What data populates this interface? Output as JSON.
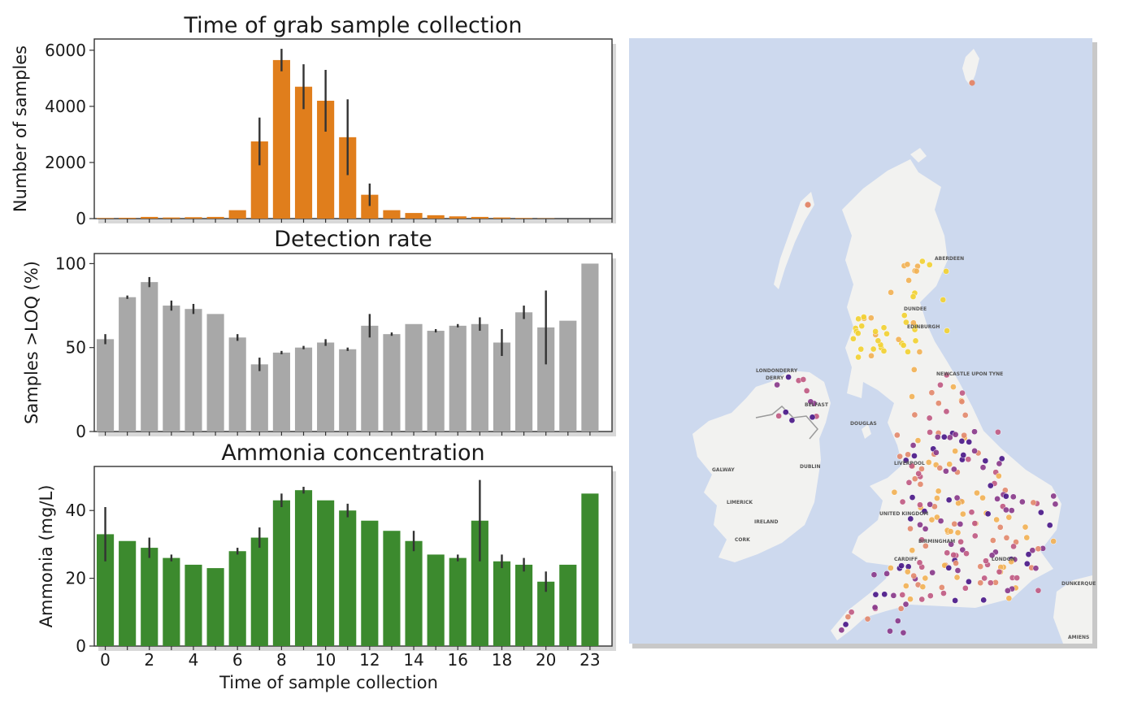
{
  "chart_data": [
    {
      "type": "bar",
      "title": "Time of grab sample collection",
      "xlabel": "",
      "ylabel": "Number of samples",
      "x": [
        0,
        1,
        2,
        3,
        4,
        5,
        6,
        7,
        8,
        9,
        10,
        11,
        12,
        13,
        14,
        15,
        16,
        17,
        18,
        19,
        20,
        21,
        22,
        23
      ],
      "values": [
        20,
        30,
        60,
        40,
        50,
        60,
        300,
        2750,
        5650,
        4700,
        4200,
        2900,
        850,
        300,
        200,
        120,
        80,
        60,
        40,
        20,
        10,
        0,
        0,
        0
      ],
      "error": [
        0,
        0,
        0,
        0,
        0,
        0,
        0,
        850,
        400,
        800,
        1100,
        1350,
        400,
        0,
        0,
        0,
        0,
        0,
        0,
        0,
        0,
        0,
        0,
        0
      ],
      "ylim": [
        0,
        6400
      ],
      "yticks": [
        0,
        2000,
        4000,
        6000
      ],
      "color": "#e07e1c",
      "grid": false
    },
    {
      "type": "bar",
      "title": "Detection rate",
      "xlabel": "",
      "ylabel": "Samples >LOQ (%)",
      "x": [
        0,
        1,
        2,
        3,
        4,
        5,
        6,
        7,
        8,
        9,
        10,
        11,
        12,
        13,
        14,
        15,
        16,
        17,
        18,
        19,
        20,
        21,
        23
      ],
      "values": [
        55,
        80,
        89,
        75,
        73,
        70,
        56,
        40,
        47,
        50,
        53,
        49,
        63,
        58,
        64,
        60,
        63,
        64,
        53,
        71,
        62,
        66,
        100
      ],
      "error": [
        3,
        1,
        3,
        3,
        3,
        0,
        2,
        4,
        1,
        1,
        2,
        1,
        7,
        1,
        0,
        1,
        1,
        4,
        8,
        4,
        22,
        0,
        0
      ],
      "ylim": [
        0,
        106
      ],
      "yticks": [
        0,
        50,
        100
      ],
      "color": "#a8a8a8",
      "grid": false
    },
    {
      "type": "bar",
      "title": "Ammonia concentration",
      "xlabel": "Time of sample collection",
      "ylabel": "Ammonia (mg/L)",
      "x": [
        0,
        1,
        2,
        3,
        4,
        5,
        6,
        7,
        8,
        9,
        10,
        11,
        12,
        13,
        14,
        15,
        16,
        17,
        18,
        19,
        20,
        21,
        23
      ],
      "values": [
        33,
        31,
        29,
        26,
        24,
        23,
        28,
        32,
        43,
        46,
        43,
        40,
        37,
        34,
        31,
        27,
        26,
        37,
        25,
        24,
        19,
        24,
        45
      ],
      "error": [
        8,
        0,
        3,
        1,
        0,
        0,
        1,
        3,
        2,
        1,
        0,
        2,
        0,
        0,
        3,
        0,
        1,
        12,
        2,
        2,
        3,
        0,
        0
      ],
      "ylim": [
        0,
        53
      ],
      "yticks": [
        0,
        20,
        40
      ],
      "xticks": [
        0,
        2,
        4,
        6,
        8,
        10,
        12,
        14,
        16,
        18,
        20,
        23
      ],
      "color": "#3c8a2e",
      "grid": false
    }
  ],
  "map": {
    "type": "map",
    "labels": [
      "ABERDEEN",
      "DUNDEE",
      "EDINBURGH",
      "LONDONDERRY",
      "DERRY",
      "BELFAST",
      "DOUGLAS",
      "NEWCASTLE UPON TYNE",
      "DUBLIN",
      "GALWAY",
      "LIMERICK",
      "IRELAND",
      "CORK",
      "UNITED KINGDOM",
      "LIVERPOOL",
      "BIRMINGHAM",
      "CARDIFF",
      "LONDON",
      "DUNKERQUE",
      "AMIENS"
    ],
    "colors": {
      "sea": "#cdd9ee",
      "land": "#f2f2f0",
      "points": [
        "#f2d234",
        "#f3b357",
        "#e38a6e",
        "#c15c84",
        "#8a3b8c",
        "#4b1a8a"
      ]
    }
  }
}
